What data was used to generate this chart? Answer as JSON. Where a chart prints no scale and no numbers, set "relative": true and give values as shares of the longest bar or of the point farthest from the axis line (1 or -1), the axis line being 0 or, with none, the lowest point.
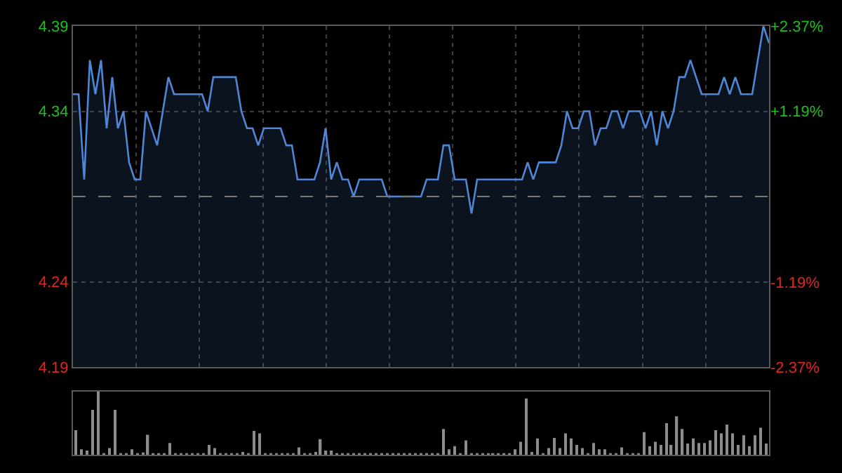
{
  "chart_data": [
    {
      "type": "area",
      "categories": [
        null,
        null,
        null,
        null,
        null,
        null,
        null,
        null,
        null,
        null,
        null,
        null,
        null,
        null,
        null,
        null,
        null,
        null,
        null,
        null,
        null,
        null,
        null,
        null,
        null,
        null,
        null,
        null,
        null,
        null,
        null,
        null,
        null,
        null,
        null,
        null,
        null,
        null,
        null,
        null,
        null,
        null,
        null,
        null,
        null,
        null,
        null,
        null,
        null,
        null,
        null,
        null,
        null,
        null,
        null,
        null,
        null,
        null,
        null,
        null,
        null,
        null,
        null,
        null,
        null,
        null,
        null,
        null,
        null,
        null,
        null,
        null,
        null,
        null,
        null,
        null,
        null,
        null,
        null,
        null,
        null,
        null,
        null,
        null,
        null,
        null,
        null,
        null,
        null,
        null,
        null,
        null,
        null,
        null,
        null,
        null,
        null,
        null,
        null,
        null,
        null,
        null,
        null,
        null,
        null,
        null,
        null,
        null,
        null,
        null,
        null,
        null,
        null,
        null,
        null,
        null,
        null,
        null,
        null,
        null,
        null,
        null,
        null,
        null,
        null
      ],
      "series": [
        {
          "color": "#4f86d6",
          "values": [
            4.35,
            4.35,
            4.3,
            4.37,
            4.35,
            4.37,
            4.33,
            4.36,
            4.33,
            4.34,
            4.31,
            4.3,
            4.3,
            4.34,
            4.33,
            4.32,
            4.34,
            4.36,
            4.35,
            4.35,
            4.35,
            4.35,
            4.35,
            4.35,
            4.34,
            4.36,
            4.36,
            4.36,
            4.36,
            4.36,
            4.34,
            4.33,
            4.33,
            4.32,
            4.33,
            4.33,
            4.33,
            4.33,
            4.32,
            4.32,
            4.3,
            4.3,
            4.3,
            4.3,
            4.31,
            4.33,
            4.3,
            4.31,
            4.3,
            4.3,
            4.29,
            4.3,
            4.3,
            4.3,
            4.3,
            4.3,
            4.29,
            4.29,
            4.29,
            4.29,
            4.29,
            4.29,
            4.29,
            4.3,
            4.3,
            4.3,
            4.32,
            4.32,
            4.3,
            4.3,
            4.3,
            4.28,
            4.3,
            4.3,
            4.3,
            4.3,
            4.3,
            4.3,
            4.3,
            4.3,
            4.3,
            4.31,
            4.3,
            4.31,
            4.31,
            4.31,
            4.31,
            4.32,
            4.34,
            4.33,
            4.33,
            4.34,
            4.34,
            4.32,
            4.33,
            4.33,
            4.34,
            4.34,
            4.33,
            4.34,
            4.34,
            4.34,
            4.33,
            4.34,
            4.32,
            4.34,
            4.33,
            4.34,
            4.36,
            4.36,
            4.37,
            4.36,
            4.35,
            4.35,
            4.35,
            4.35,
            4.36,
            4.35,
            4.36,
            4.35,
            4.35,
            4.35,
            4.37,
            4.39,
            4.38
          ]
        }
      ],
      "ylim": [
        4.19,
        4.39
      ],
      "yticks": [
        4.39,
        4.34,
        4.24,
        4.19
      ],
      "y2lim": [
        -2.37,
        2.37
      ],
      "y2ticks": [
        {
          "value": 2.37,
          "label": "+2.37%"
        },
        {
          "value": 1.19,
          "label": "+1.19%"
        },
        {
          "value": -1.19,
          "label": "-1.19%"
        },
        {
          "value": -2.37,
          "label": "-2.37%"
        }
      ],
      "ref_lines": [
        {
          "axis": "y",
          "value": 4.29,
          "line_style": "dashed",
          "color": "#777777"
        }
      ],
      "grid": true,
      "tick_labels": "y"
    },
    {
      "type": "bar",
      "relative": true,
      "tick_labels": false,
      "categories": [
        null,
        null,
        null,
        null,
        null,
        null,
        null,
        null,
        null,
        null,
        null,
        null,
        null,
        null,
        null,
        null,
        null,
        null,
        null,
        null,
        null,
        null,
        null,
        null,
        null,
        null,
        null,
        null,
        null,
        null,
        null,
        null,
        null,
        null,
        null,
        null,
        null,
        null,
        null,
        null,
        null,
        null,
        null,
        null,
        null,
        null,
        null,
        null,
        null,
        null,
        null,
        null,
        null,
        null,
        null,
        null,
        null,
        null,
        null,
        null,
        null,
        null,
        null,
        null,
        null,
        null,
        null,
        null,
        null,
        null,
        null,
        null,
        null,
        null,
        null,
        null,
        null,
        null,
        null,
        null,
        null,
        null,
        null,
        null,
        null,
        null,
        null,
        null,
        null,
        null,
        null,
        null,
        null,
        null,
        null,
        null,
        null,
        null,
        null,
        null,
        null,
        null,
        null,
        null,
        null,
        null,
        null,
        null,
        null,
        null,
        null,
        null,
        null,
        null,
        null,
        null,
        null,
        null,
        null,
        null,
        null,
        null,
        null,
        null,
        null
      ],
      "series": [
        {
          "color": "#8c8c8c",
          "values": [
            0.39,
            0.09,
            0.07,
            0.71,
            1.0,
            0.02,
            0.11,
            0.71,
            0.02,
            0.02,
            0.09,
            0.02,
            0.04,
            0.32,
            0.02,
            0.02,
            0.02,
            0.19,
            0.02,
            0.02,
            0.02,
            0.02,
            0.02,
            0.02,
            0.16,
            0.11,
            0.02,
            0.02,
            0.02,
            0.02,
            0.05,
            0.02,
            0.38,
            0.34,
            0.02,
            0.02,
            0.02,
            0.02,
            0.02,
            0.02,
            0.12,
            0.02,
            0.02,
            0.05,
            0.25,
            0.07,
            0.07,
            0.02,
            0.02,
            0.02,
            0.02,
            0.02,
            0.02,
            0.02,
            0.02,
            0.02,
            0.02,
            0.02,
            0.02,
            0.02,
            0.02,
            0.02,
            0.02,
            0.02,
            0.02,
            0.02,
            0.41,
            0.09,
            0.14,
            0.02,
            0.23,
            0.02,
            0.02,
            0.02,
            0.02,
            0.02,
            0.02,
            0.02,
            0.02,
            0.09,
            0.21,
            0.89,
            0.05,
            0.26,
            0.02,
            0.11,
            0.27,
            0.11,
            0.34,
            0.26,
            0.16,
            0.11,
            0.02,
            0.19,
            0.09,
            0.09,
            0.02,
            0.02,
            0.12,
            0.02,
            0.02,
            0.02,
            0.36,
            0.14,
            0.21,
            0.16,
            0.5,
            0.16,
            0.61,
            0.41,
            0.18,
            0.26,
            0.19,
            0.19,
            0.23,
            0.39,
            0.34,
            0.48,
            0.34,
            0.16,
            0.31,
            0.14,
            0.31,
            0.43,
            0.18
          ]
        }
      ]
    }
  ]
}
